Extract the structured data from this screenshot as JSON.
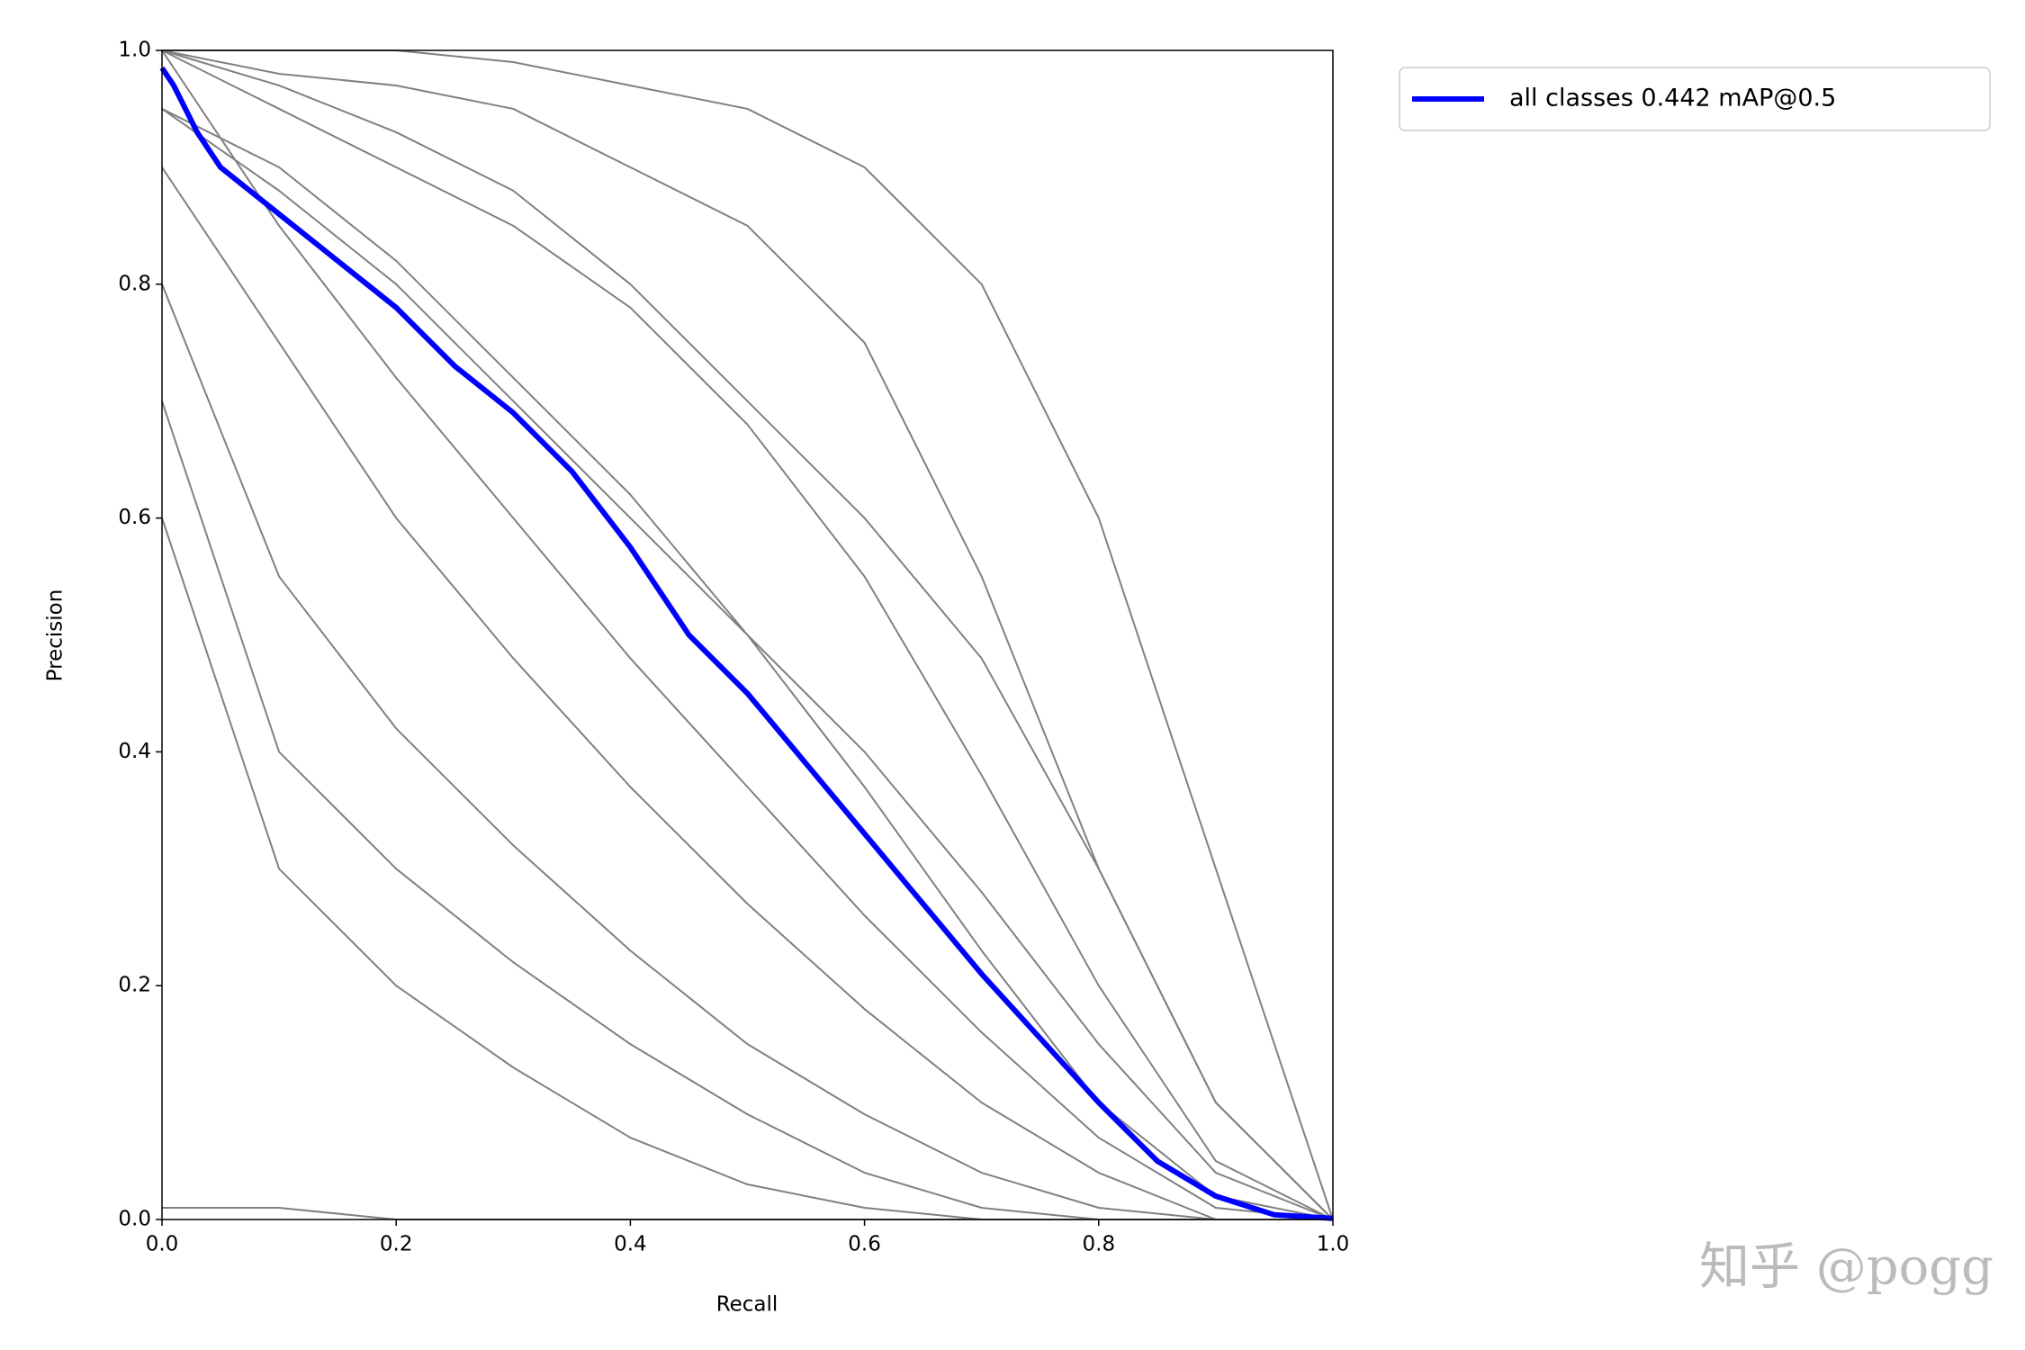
{
  "chart_data": {
    "type": "line",
    "xlabel": "Recall",
    "ylabel": "Precision",
    "x": [
      0,
      0.1,
      0.2,
      0.3,
      0.4,
      0.5,
      0.6,
      0.7,
      0.8,
      0.9,
      1.0
    ],
    "xlim": [
      0,
      1
    ],
    "ylim": [
      0,
      1
    ],
    "xticks": [
      {
        "value": 0,
        "label": "0.0"
      },
      0.2,
      0.4,
      0.6,
      0.8,
      {
        "value": 1,
        "label": "1.0"
      }
    ],
    "yticks": [
      {
        "value": 0,
        "label": "0.0"
      },
      0.2,
      0.4,
      0.6,
      0.8,
      {
        "value": 1,
        "label": "1.0"
      }
    ],
    "legend": "outside upper right",
    "series": [
      {
        "color": "#808080",
        "values": [
          1,
          1,
          1,
          0.99,
          0.97,
          0.95,
          0.9,
          0.8,
          0.6,
          0.3,
          0
        ]
      },
      {
        "color": "#808080",
        "values": [
          1,
          0.98,
          0.97,
          0.95,
          0.9,
          0.85,
          0.75,
          0.55,
          0.3,
          0.1,
          0
        ]
      },
      {
        "color": "#808080",
        "values": [
          1,
          0.97,
          0.93,
          0.88,
          0.8,
          0.7,
          0.6,
          0.48,
          0.3,
          0.1,
          0
        ]
      },
      {
        "color": "#808080",
        "values": [
          1,
          0.95,
          0.9,
          0.85,
          0.78,
          0.68,
          0.55,
          0.38,
          0.2,
          0.05,
          0
        ]
      },
      {
        "color": "#808080",
        "values": [
          0.95,
          0.88,
          0.8,
          0.7,
          0.6,
          0.5,
          0.4,
          0.28,
          0.15,
          0.04,
          0
        ]
      },
      {
        "color": "#808080",
        "values": [
          0.95,
          0.9,
          0.82,
          0.72,
          0.62,
          0.5,
          0.37,
          0.23,
          0.1,
          0.02,
          0
        ]
      },
      {
        "color": "#808080",
        "values": [
          1,
          0.85,
          0.72,
          0.6,
          0.48,
          0.37,
          0.26,
          0.16,
          0.07,
          0.01,
          0
        ]
      },
      {
        "color": "#808080",
        "values": [
          0.9,
          0.75,
          0.6,
          0.48,
          0.37,
          0.27,
          0.18,
          0.1,
          0.04,
          0,
          0
        ]
      },
      {
        "color": "#808080",
        "values": [
          0.8,
          0.55,
          0.42,
          0.32,
          0.23,
          0.15,
          0.09,
          0.04,
          0.01,
          0,
          0
        ]
      },
      {
        "color": "#808080",
        "values": [
          0.7,
          0.4,
          0.3,
          0.22,
          0.15,
          0.09,
          0.04,
          0.01,
          0,
          0,
          0
        ]
      },
      {
        "color": "#808080",
        "values": [
          0.6,
          0.3,
          0.2,
          0.13,
          0.07,
          0.03,
          0.01,
          0,
          0,
          0,
          0
        ]
      },
      {
        "color": "#808080",
        "values": [
          0.01,
          0.01,
          0,
          0,
          0,
          0,
          0,
          0,
          0,
          0,
          0
        ]
      },
      {
        "name": "all classes 0.442 mAP@0.5",
        "color": "#0000ff",
        "x": [
          0,
          0.01,
          0.03,
          0.05,
          0.1,
          0.15,
          0.2,
          0.25,
          0.3,
          0.35,
          0.4,
          0.45,
          0.5,
          0.55,
          0.6,
          0.65,
          0.7,
          0.75,
          0.8,
          0.85,
          0.9,
          0.95,
          1.0
        ],
        "values": [
          0.985,
          0.97,
          0.93,
          0.9,
          0.86,
          0.82,
          0.78,
          0.73,
          0.69,
          0.64,
          0.575,
          0.5,
          0.45,
          0.39,
          0.33,
          0.27,
          0.21,
          0.155,
          0.1,
          0.05,
          0.02,
          0.004,
          0.001
        ]
      }
    ]
  },
  "watermark": "知乎 @pogg"
}
